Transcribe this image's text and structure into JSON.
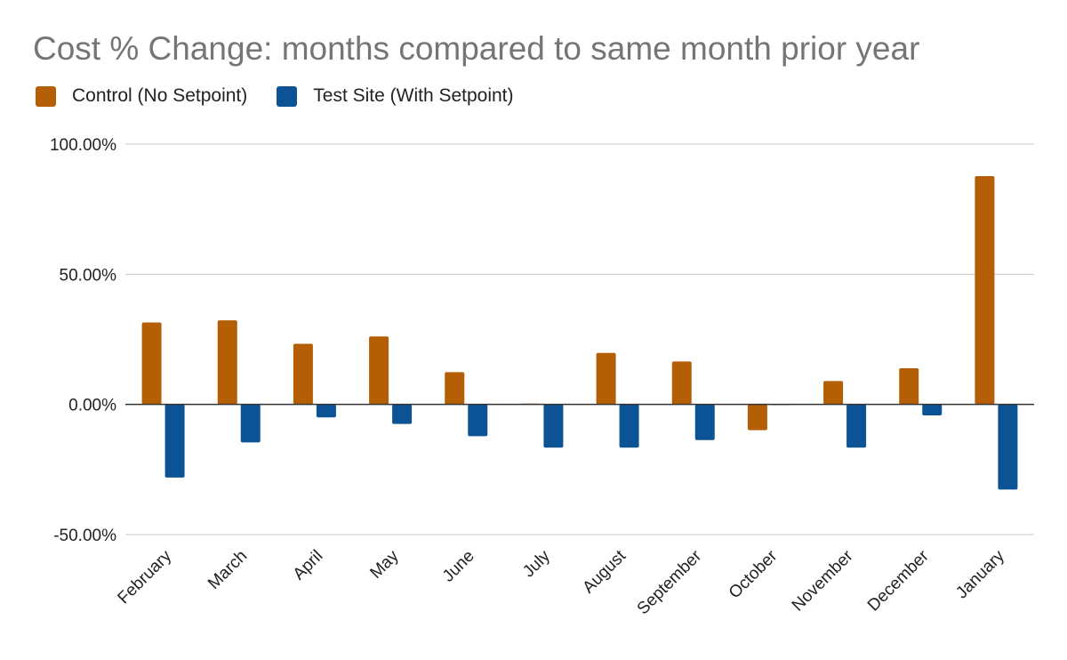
{
  "chart_data": {
    "type": "bar",
    "title": "Cost % Change: months compared to same month prior year",
    "xlabel": "",
    "ylabel": "",
    "categories": [
      "February",
      "March",
      "April",
      "May",
      "June",
      "July",
      "August",
      "September",
      "October",
      "November",
      "December",
      "January"
    ],
    "series": [
      {
        "name": "Control (No Setpoint)",
        "color": "#b45f06",
        "values": [
          31.5,
          32.3,
          23.3,
          26.1,
          12.4,
          0.3,
          19.8,
          16.5,
          -9.9,
          9.0,
          13.9,
          87.7
        ]
      },
      {
        "name": "Test Site (With Setpoint)",
        "color": "#0b5394",
        "values": [
          -28.1,
          -14.6,
          -5.0,
          -7.5,
          -12.2,
          -16.6,
          -16.6,
          -13.7,
          0.0,
          -16.6,
          -4.2,
          -32.7
        ]
      }
    ],
    "ylim": [
      -50,
      100
    ],
    "yticks": [
      {
        "value": 100,
        "label": "100.00%"
      },
      {
        "value": 50,
        "label": "50.00%"
      },
      {
        "value": 0,
        "label": "0.00%"
      },
      {
        "value": -50,
        "label": "-50.00%"
      }
    ],
    "grid": true,
    "legend_position": "top-left",
    "gridline_color": "#c8c8c8",
    "zero_line_color": "#333333"
  }
}
